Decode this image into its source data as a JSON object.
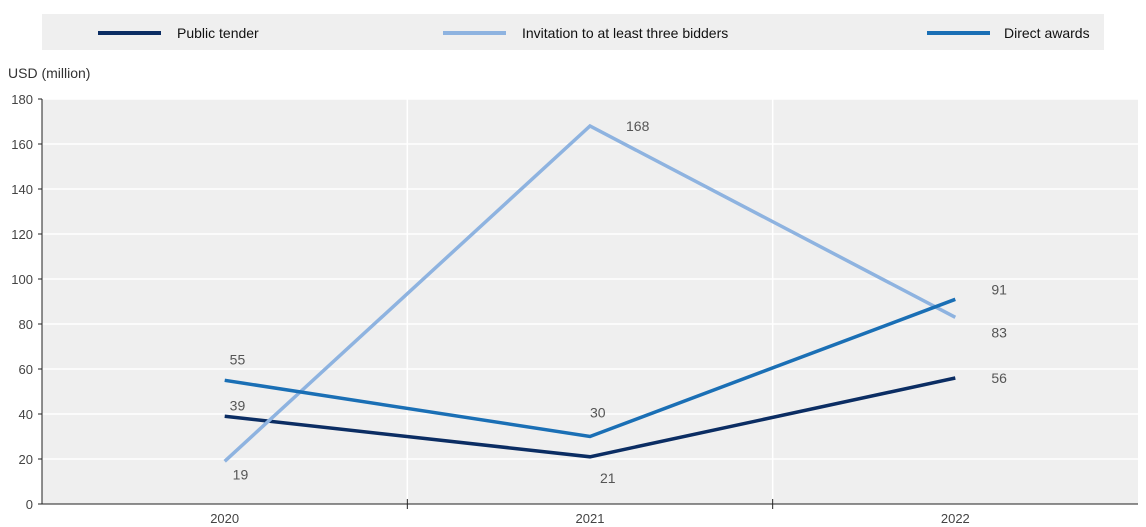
{
  "chart_data": {
    "type": "line",
    "title": "",
    "xlabel": "",
    "ylabel": "USD (million)",
    "categories": [
      "2020",
      "2021",
      "2022"
    ],
    "ylim": [
      0,
      180
    ],
    "yticks": [
      0,
      20,
      40,
      60,
      80,
      100,
      120,
      140,
      160,
      180
    ],
    "grid": true,
    "legend_position": "top",
    "series": [
      {
        "name": "Public tender",
        "color": "#0b2d63",
        "values": [
          39,
          21,
          56
        ],
        "labels": [
          "39",
          "21",
          "56"
        ]
      },
      {
        "name": "Invitation to at least three bidders",
        "color": "#8eb3e0",
        "values": [
          19,
          168,
          83
        ],
        "labels": [
          "19",
          "168",
          "83"
        ]
      },
      {
        "name": "Direct awards",
        "color": "#1a6fb5",
        "values": [
          55,
          30,
          91
        ],
        "labels": [
          "55",
          "30",
          "91"
        ]
      }
    ]
  }
}
